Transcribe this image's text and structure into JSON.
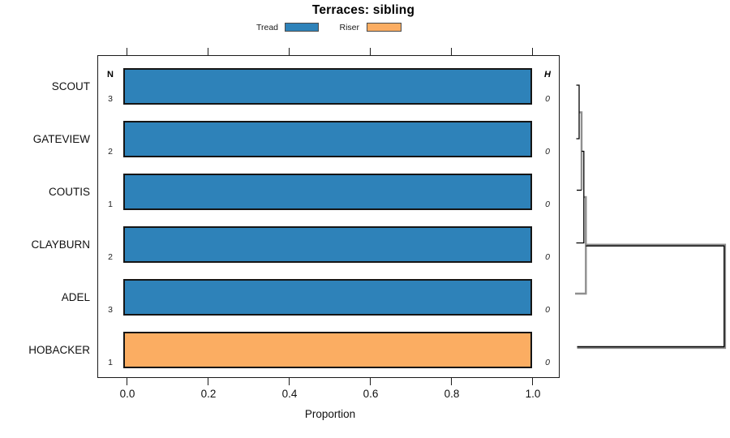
{
  "chart_data": {
    "type": "bar",
    "orientation": "horizontal",
    "title": "Terraces: sibling",
    "xlabel": "Proportion",
    "xlim": [
      0,
      1
    ],
    "x_ticks": [
      "0.0",
      "0.2",
      "0.4",
      "0.6",
      "0.8",
      "1.0"
    ],
    "grid": false,
    "legend_position": "top",
    "legend": [
      {
        "label": "Tread",
        "color": "#2E82B9"
      },
      {
        "label": "Riser",
        "color": "#FBAD62"
      }
    ],
    "columns": {
      "n_header": "N",
      "h_header": "H"
    },
    "rows": [
      {
        "label": "SCOUT",
        "n": "3",
        "h": "0",
        "series": "Tread",
        "value": 1.0
      },
      {
        "label": "GATEVIEW",
        "n": "2",
        "h": "0",
        "series": "Tread",
        "value": 1.0
      },
      {
        "label": "COUTIS",
        "n": "1",
        "h": "0",
        "series": "Tread",
        "value": 1.0
      },
      {
        "label": "CLAYBURN",
        "n": "2",
        "h": "0",
        "series": "Tread",
        "value": 1.0
      },
      {
        "label": "ADEL",
        "n": "3",
        "h": "0",
        "series": "Tread",
        "value": 1.0
      },
      {
        "label": "HOBACKER",
        "n": "1",
        "h": "0",
        "series": "Riser",
        "value": 1.0
      }
    ],
    "dendrogram": {
      "side": "right",
      "merge_order": [
        [
          "SCOUT",
          "GATEVIEW"
        ],
        [
          "{SCOUT,GATEVIEW}",
          "COUTIS"
        ],
        [
          "{SCOUT,GATEVIEW,COUTIS}",
          "CLAYBURN"
        ],
        [
          "{SCOUT,GATEVIEW,COUTIS,CLAYBURN}",
          "ADEL"
        ],
        [
          "{SCOUT,GATEVIEW,COUTIS,CLAYBURN,ADEL}",
          "HOBACKER"
        ]
      ]
    },
    "colors": {
      "line_black": "#000000",
      "line_gray": "#8f8f8f"
    }
  }
}
